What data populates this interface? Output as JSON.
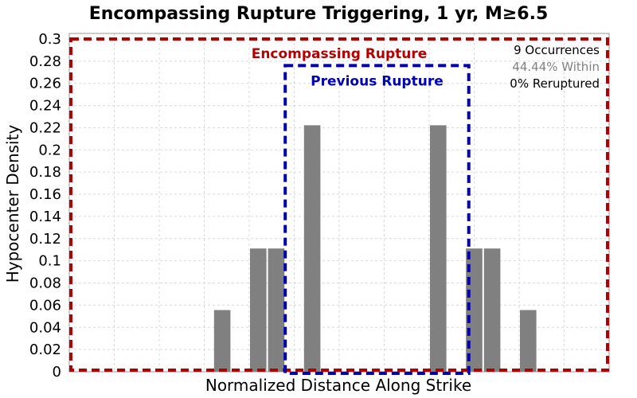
{
  "chart_data": {
    "type": "bar",
    "title": "Encompassing Rupture Triggering, 1 yr, M≥6.5",
    "xlabel": "Normalized Distance Along Strike",
    "ylabel": "Hypocenter Density",
    "ylim": [
      0,
      0.305
    ],
    "xlim": [
      -1.5,
      1.5
    ],
    "y_ticks": [
      "0",
      "0.02",
      "0.04",
      "0.06",
      "0.08",
      "0.1",
      "0.12",
      "0.14",
      "0.16",
      "0.18",
      "0.2",
      "0.22",
      "0.24",
      "0.26",
      "0.28",
      "0.3"
    ],
    "bin_width": 0.1,
    "bar_color": "#808080",
    "bars": [
      {
        "x": -0.65,
        "value": 0.0556
      },
      {
        "x": -0.45,
        "value": 0.1111
      },
      {
        "x": -0.35,
        "value": 0.1111
      },
      {
        "x": -0.15,
        "value": 0.2222
      },
      {
        "x": 0.55,
        "value": 0.2222
      },
      {
        "x": 0.75,
        "value": 0.1111
      },
      {
        "x": 0.85,
        "value": 0.1111
      },
      {
        "x": 1.05,
        "value": 0.0556
      }
    ],
    "grid": true,
    "encompassing_rupture": {
      "label": "Encompassing Rupture",
      "color": "#b30000",
      "x_range": [
        -1.5,
        1.5
      ],
      "y_top": 0.3
    },
    "previous_rupture": {
      "label": "Previous Rupture",
      "color": "#0000b3",
      "x_range": [
        -0.3,
        0.72
      ],
      "y_top": 0.276
    },
    "annotations": [
      {
        "text": "9 Occurrences",
        "color": "#000000"
      },
      {
        "text": "44.44% Within",
        "color": "#808080"
      },
      {
        "text": "0% Reruptured",
        "color": "#000000"
      }
    ]
  }
}
